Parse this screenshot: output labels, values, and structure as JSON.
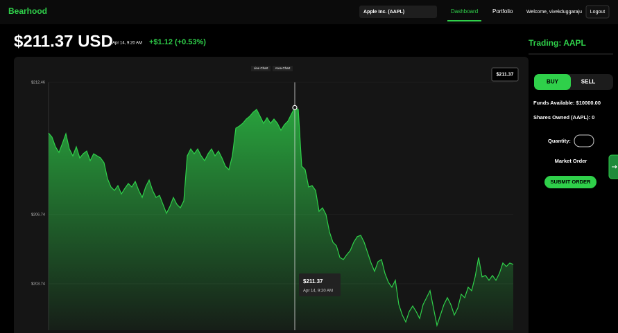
{
  "nav": {
    "brand": "Bearhood",
    "search": "Apple Inc. (AAPL)",
    "links": [
      "Dashboard",
      "Portfolio"
    ],
    "welcome": "Welcome, vivekduggaraju",
    "logout": "Logout"
  },
  "header": {
    "price": "$211.37 USD",
    "time": "Apr 14, 9:20 AM",
    "change": "+$1.12 (+0.53%)"
  },
  "chart_data": {
    "type": "area",
    "chart_types": [
      "Line Chart",
      "Area Chart"
    ],
    "current_label": "$211.37",
    "tooltip": {
      "value": "$211.37",
      "time": "Apr 14, 9:20 AM"
    },
    "color": "#2fd04a",
    "ylim": [
      201.73,
      212.46
    ],
    "yticks": [
      {
        "value": 212.46,
        "label": "$212.46"
      },
      {
        "value": 206.74,
        "label": "$206.74"
      },
      {
        "value": 203.74,
        "label": "$203.74"
      }
    ],
    "grid": true,
    "values": [
      210.27,
      210.09,
      209.67,
      209.43,
      209.82,
      210.24,
      209.58,
      209.28,
      209.67,
      209.19,
      209.37,
      209.49,
      209.07,
      209.37,
      209.28,
      209.19,
      208.98,
      208.29,
      207.93,
      207.78,
      207.99,
      207.63,
      207.87,
      208.08,
      207.93,
      208.17,
      207.78,
      207.48,
      207.93,
      208.23,
      207.78,
      207.48,
      207.57,
      207.18,
      206.79,
      207.09,
      207.48,
      207.18,
      207.03,
      207.33,
      209.28,
      209.58,
      209.37,
      209.58,
      209.28,
      209.07,
      209.37,
      209.58,
      209.28,
      209.49,
      209.19,
      208.83,
      208.68,
      209.28,
      210.48,
      210.57,
      210.69,
      210.87,
      210.99,
      211.17,
      211.29,
      210.99,
      210.69,
      210.93,
      210.69,
      210.87,
      210.69,
      210.39,
      210.63,
      210.78,
      211.08,
      211.37,
      211.29,
      208.83,
      208.68,
      207.93,
      207.99,
      207.78,
      206.88,
      207.03,
      206.74,
      205.99,
      205.54,
      205.39,
      204.88,
      204.79,
      205.0,
      205.18,
      205.54,
      205.78,
      205.84,
      205.54,
      205.09,
      204.64,
      204.28,
      204.7,
      204.79,
      204.19,
      203.8,
      203.59,
      203.89,
      202.84,
      202.39,
      202.09,
      202.54,
      202.78,
      202.54,
      202.24,
      202.84,
      203.14,
      203.44,
      202.69,
      201.94,
      202.39,
      202.84,
      203.14,
      202.84,
      202.39,
      202.69,
      203.29,
      203.14,
      203.59,
      203.44,
      204.04,
      204.88,
      204.04,
      204.1,
      203.89,
      204.1,
      203.89,
      204.19,
      204.64,
      204.49,
      204.64,
      204.58
    ]
  },
  "trade": {
    "title": "Trading: AAPL",
    "buy": "BUY",
    "sell": "SELL",
    "funds": "Funds Available: $10000.00",
    "shares": "Shares Owned (AAPL): 0",
    "quantity": "Quantity:",
    "order_type": "Market Order",
    "submit": "SUBMIT ORDER"
  }
}
